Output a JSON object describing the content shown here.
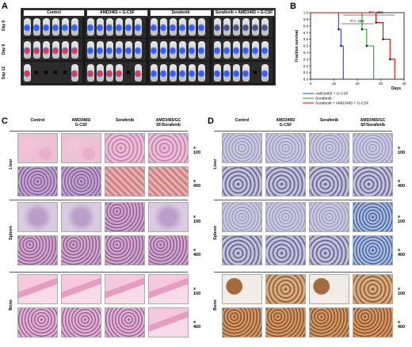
{
  "panels": {
    "a": {
      "letter": "A",
      "groups": [
        "Control",
        "AMD3465 + G-CSF",
        "Sorafenib",
        "Sorafenib + AMD3465 + G-CSF"
      ],
      "days": [
        "Day 6",
        "Day 9",
        "Day 12"
      ]
    },
    "b": {
      "letter": "B",
      "pvalue_top": "P < .001",
      "pvalue_mid": "P < .001",
      "legend": [
        "AMD3465 + G-CSF",
        "Sorafenib",
        "Sorafenib + AMD3465 + G-CSF"
      ]
    },
    "c": {
      "letter": "C",
      "columns": [
        "Control",
        "AMD3465/\nG-CSF",
        "Sorafenib",
        "AMD3465/GC\nSF/Sorafenib"
      ],
      "rows": [
        "Liver",
        "Spleen",
        "Bone"
      ],
      "mags": [
        "x 100",
        "x 400"
      ]
    },
    "d": {
      "letter": "D",
      "columns": [
        "Control",
        "AMD3465/\nG-CSF",
        "Sorafenib",
        "AMD3465/GC\nSF/Sorafenib"
      ],
      "rows": [
        "Liver",
        "Spleen",
        "Bone"
      ],
      "mags": [
        "x 100",
        "x 400"
      ]
    }
  },
  "colors": {
    "series_blue": "#1f3fff",
    "series_green": "#18a818",
    "series_red": "#e00000"
  },
  "chart_data": {
    "type": "line",
    "title": "",
    "xlabel": "Days",
    "ylabel": "Fraction survival",
    "xlim": [
      0,
      40
    ],
    "ylim": [
      0,
      1.0
    ],
    "xticks": [
      0,
      10,
      20,
      30,
      40
    ],
    "yticks": [
      0,
      0.1,
      0.2,
      0.3,
      0.4,
      0.5,
      0.6,
      0.7,
      0.8,
      0.9,
      1.0
    ],
    "series": [
      {
        "name": "AMD3465 + G-CSF",
        "x": [
          0,
          12,
          12,
          13,
          13,
          14,
          14
        ],
        "y": [
          1.0,
          1.0,
          0.75,
          0.75,
          0.5,
          0.5,
          0.0
        ]
      },
      {
        "name": "Sorafenib",
        "x": [
          0,
          22,
          22,
          24,
          24,
          27,
          27
        ],
        "y": [
          1.0,
          1.0,
          0.75,
          0.75,
          0.5,
          0.5,
          0.0
        ]
      },
      {
        "name": "Sorafenib + AMD3465 + G-CSF",
        "x": [
          0,
          28,
          28,
          31,
          31,
          34,
          34,
          36,
          36
        ],
        "y": [
          1.0,
          1.0,
          0.85,
          0.85,
          0.6,
          0.6,
          0.3,
          0.3,
          0.0
        ]
      }
    ]
  }
}
